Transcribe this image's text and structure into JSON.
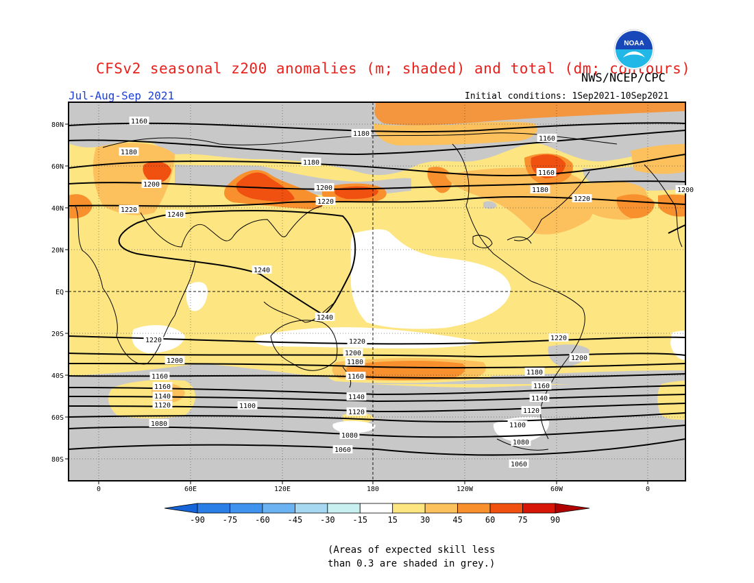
{
  "header": {
    "title": "CFSv2 seasonal z200 anomalies (m; shaded) and total (dm; contours)",
    "agency": "NWS/NCEP/CPC",
    "period": "Jul-Aug-Sep 2021",
    "initial_conditions": "Initial conditions: 1Sep2021-10Sep2021",
    "logo_text": "NOAA"
  },
  "map": {
    "lat_labels": [
      "80N",
      "60N",
      "40N",
      "20N",
      "EQ",
      "20S",
      "40S",
      "60S",
      "80S"
    ],
    "lon_labels": [
      "0",
      "60E",
      "120E",
      "180",
      "120W",
      "60W",
      "0"
    ],
    "contour_labels": [
      "1160",
      "1180",
      "1160",
      "1180",
      "1180",
      "1160",
      "1200",
      "1200",
      "1180",
      "1200",
      "1220",
      "1220",
      "1220",
      "1240",
      "1240",
      "1240",
      "1220",
      "1220",
      "1220",
      "1200",
      "1200",
      "1200",
      "1180",
      "1180",
      "1160",
      "1160",
      "1160",
      "1160",
      "1140",
      "1140",
      "1140",
      "1120",
      "1100",
      "1120",
      "1120",
      "1100",
      "1080",
      "1080",
      "1080",
      "1060",
      "1060"
    ],
    "colorbar": {
      "values": [
        "-90",
        "-75",
        "-60",
        "-45",
        "-30",
        "-15",
        "15",
        "30",
        "45",
        "60",
        "75",
        "90"
      ],
      "colors": [
        "#1565d8",
        "#2a7fe6",
        "#3f93ef",
        "#6ab2f2",
        "#a6d8f2",
        "#c8f0f0",
        "#ffffff",
        "#fde582",
        "#fcc15c",
        "#f8902e",
        "#f05010",
        "#d81608",
        "#b00000"
      ]
    },
    "skill_note": [
      "(Areas of expected skill less",
      "than 0.3 are shaded in grey.)"
    ]
  }
}
